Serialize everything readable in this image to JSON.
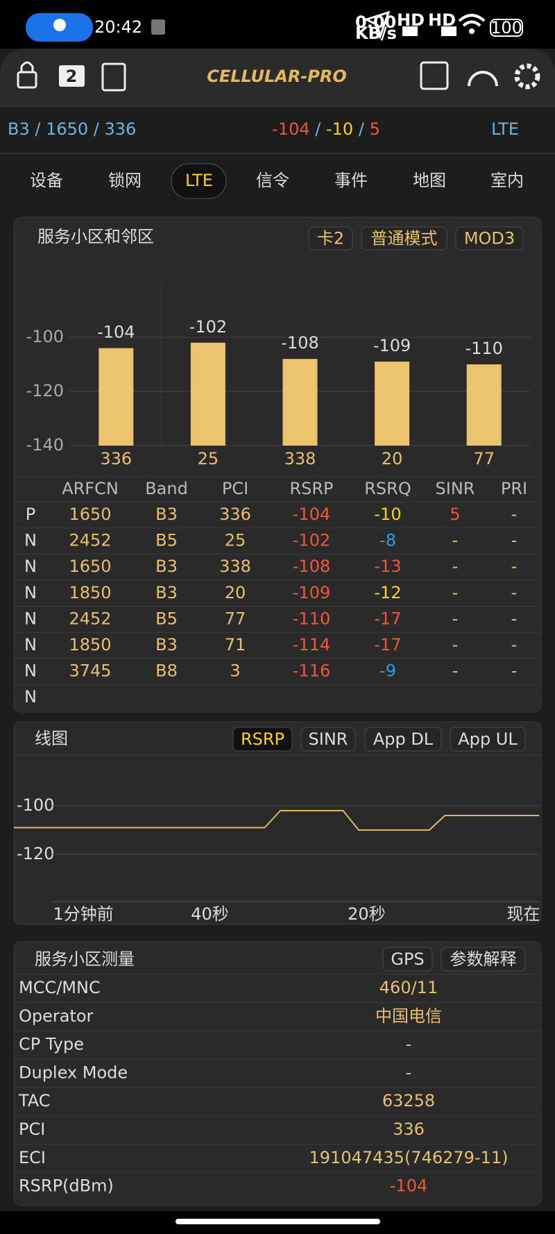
{
  "status_bar": {
    "time": "20:42",
    "net_speed": "0.00",
    "net_unit": "KB/s",
    "signal_tags": [
      "HD",
      "HD"
    ],
    "battery": "100"
  },
  "header": {
    "sim_badge": "2",
    "title": "CELLULAR-PRO"
  },
  "info_bar": {
    "cell": "B3 / 1650 / 336",
    "rsrp": -104,
    "separator": "/",
    "rsrq": -10,
    "sinr": 5,
    "rat": "LTE"
  },
  "tabs": {
    "items": [
      "设备",
      "锁网",
      "LTE",
      "信令",
      "事件",
      "地图",
      "室内"
    ],
    "active": 2
  },
  "neighbor_panel": {
    "title": "服务小区和邻区",
    "buttons": [
      "卡2",
      "普通模式",
      "MOD3"
    ]
  },
  "chart_data": [
    {
      "type": "bar",
      "categories": [
        "336",
        "25",
        "338",
        "20",
        "77"
      ],
      "values": [
        -104,
        -102,
        -108,
        -109,
        -110
      ],
      "color": "#edc46e",
      "ylim": [
        -140,
        -80
      ],
      "yticks": [
        -100,
        -120,
        -140
      ],
      "grid": true
    },
    {
      "type": "line",
      "x": [
        -65,
        -33,
        -31,
        -23,
        -21,
        -12,
        -10,
        2
      ],
      "values": [
        -109,
        -109,
        -102,
        -102,
        -110,
        -110,
        -104,
        -104
      ],
      "color": "#e2b867",
      "xlim": [
        -65,
        2
      ],
      "xticks": [
        {
          "value": -60,
          "label": "1分钟前"
        },
        {
          "value": -40,
          "label": "40秒"
        },
        {
          "value": -20,
          "label": "20秒"
        },
        {
          "value": 0,
          "label": "现在"
        }
      ],
      "ylim": [
        -140,
        -80
      ],
      "yticks": [
        -100,
        -120
      ],
      "grid": true
    }
  ],
  "table": {
    "headers": [
      "ARFCN",
      "Band",
      "PCI",
      "RSRP",
      "RSRQ",
      "SINR",
      "PRI"
    ],
    "rows": [
      [
        "P",
        1650,
        "B3",
        336,
        -104,
        -10,
        5,
        "-"
      ],
      [
        "N",
        2452,
        "B5",
        25,
        -102,
        -8,
        "-",
        "-"
      ],
      [
        "N",
        1650,
        "B3",
        338,
        -108,
        -13,
        "-",
        "-"
      ],
      [
        "N",
        1850,
        "B3",
        20,
        -109,
        -12,
        "-",
        "-"
      ],
      [
        "N",
        2452,
        "B5",
        77,
        -110,
        -17,
        "-",
        "-"
      ],
      [
        "N",
        1850,
        "B3",
        71,
        -114,
        -17,
        "-",
        "-"
      ],
      [
        "N",
        3745,
        "B8",
        3,
        -116,
        -9,
        "-",
        "-"
      ],
      [
        "N"
      ]
    ]
  },
  "line_panel": {
    "title": "线图",
    "buttons": [
      "RSRP",
      "SINR",
      "App DL",
      "App UL"
    ],
    "active": 0
  },
  "measurement": {
    "title": "服务小区测量",
    "buttons": [
      "GPS",
      "参数解释"
    ],
    "rows": [
      [
        "MCC/MNC",
        "460/11"
      ],
      [
        "Operator",
        "中国电信"
      ],
      [
        "CP Type",
        "-"
      ],
      [
        "Duplex Mode",
        "-"
      ],
      [
        "TAC",
        63258
      ],
      [
        "PCI",
        336
      ],
      [
        "ECI",
        "191047435(746279-11)"
      ],
      [
        "RSRP(dBm)",
        -104
      ]
    ]
  }
}
